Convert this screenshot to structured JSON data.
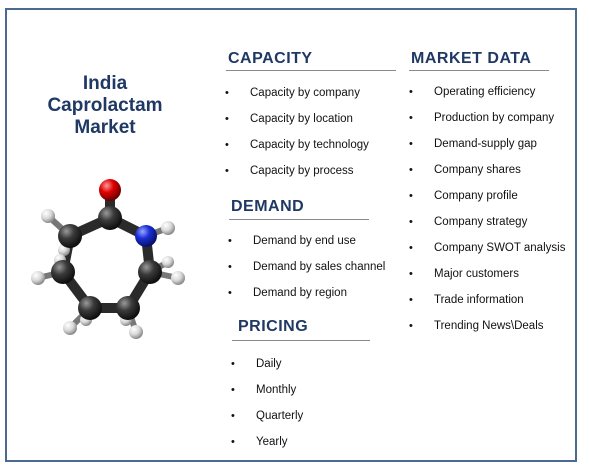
{
  "title": {
    "line1": "India",
    "line2": "Caprolactam",
    "line3": "Market"
  },
  "capacity": {
    "heading": "CAPACITY",
    "items": [
      "Capacity by company",
      "Capacity by location",
      "Capacity by technology",
      "Capacity by process"
    ]
  },
  "demand": {
    "heading": "DEMAND",
    "items": [
      "Demand by end use",
      "Demand by sales channel",
      "Demand by region"
    ]
  },
  "pricing": {
    "heading": "PRICING",
    "items": [
      "Daily",
      "Monthly",
      "Quarterly",
      "Yearly"
    ]
  },
  "market_data": {
    "heading": "MARKET DATA",
    "items": [
      "Operating efficiency",
      "Production by company",
      "Demand-supply gap",
      "Company shares",
      "Company profile",
      "Company strategy",
      "Company SWOT analysis",
      "Major customers",
      "Trade information",
      "Trending News\\Deals"
    ]
  },
  "colors": {
    "heading": "#1f3864",
    "frame": "#4a6b8f",
    "carbon": "#333333",
    "oxygen": "#e00000",
    "nitrogen": "#1a2fd6",
    "hydrogen": "#e8e8e8"
  }
}
